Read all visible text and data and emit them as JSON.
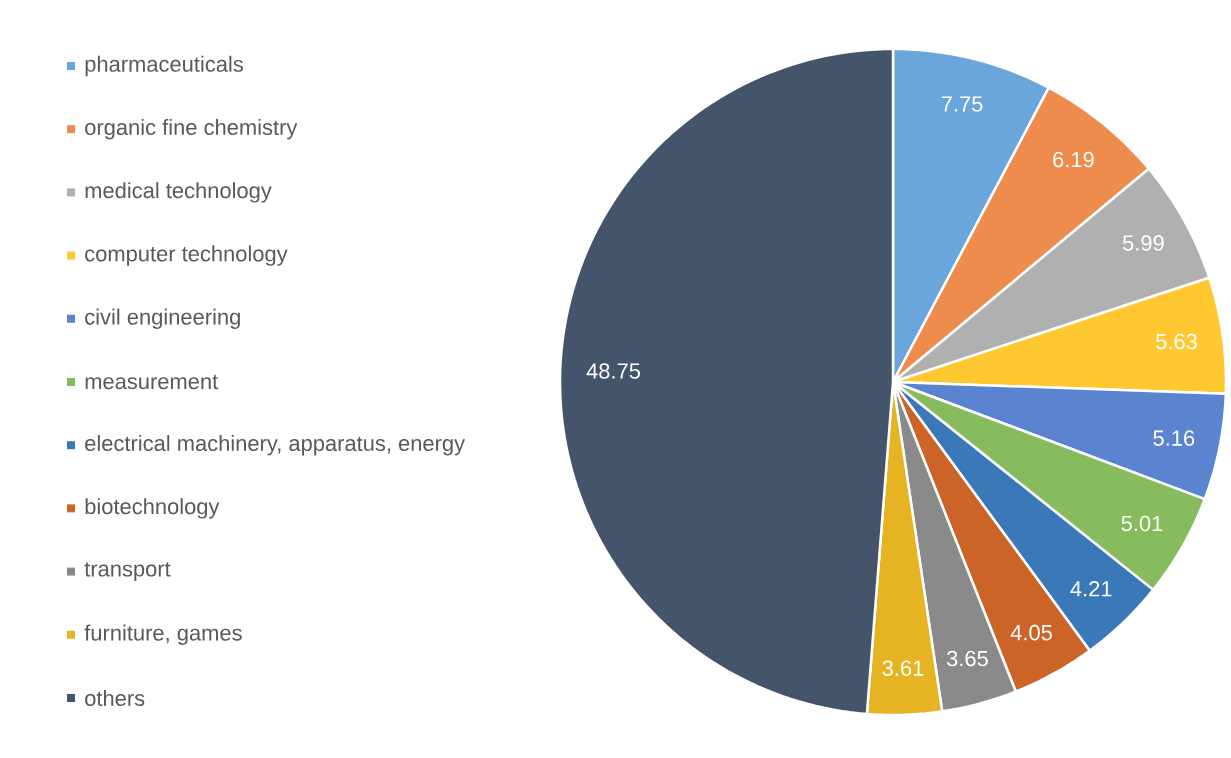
{
  "chart_data": {
    "type": "pie",
    "categories": [
      "pharmaceuticals",
      "organic fine chemistry",
      "medical technology",
      "computer technology",
      "civil engineering",
      "measurement",
      "electrical machinery, apparatus, energy",
      "biotechnology",
      "transport",
      "furniture, games",
      "others"
    ],
    "values": [
      7.75,
      6.19,
      5.99,
      5.63,
      5.16,
      5.01,
      4.21,
      4.05,
      3.65,
      3.61,
      48.75
    ],
    "colors": [
      "#6aa5dc",
      "#ee8c4e",
      "#b0b0b0",
      "#ffc830",
      "#5a84d0",
      "#86bc5e",
      "#3a78b8",
      "#cc6428",
      "#8a8a8a",
      "#e6b422",
      "#44546a"
    ],
    "data_labels": true,
    "legend": "left"
  }
}
